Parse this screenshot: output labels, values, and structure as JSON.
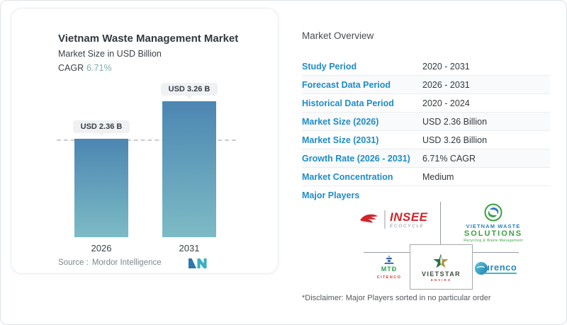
{
  "chart": {
    "title": "Vietnam Waste Management Market",
    "subtitle": "Market Size in USD Billion",
    "cagr_label": "CAGR",
    "cagr_value": "6.71%",
    "source_label": "Source :",
    "source_value": "Mordor Intelligence",
    "bars": [
      {
        "year": "2026",
        "label": "USD 2.36 B"
      },
      {
        "year": "2031",
        "label": "USD 3.26 B"
      }
    ]
  },
  "chart_data": {
    "type": "bar",
    "categories": [
      "2026",
      "2031"
    ],
    "values": [
      2.36,
      3.26
    ],
    "value_labels": [
      "USD 2.36 B",
      "USD 3.26 B"
    ],
    "title": "Vietnam Waste Management Market",
    "ylabel": "Market Size in USD Billion",
    "cagr": "6.71%",
    "dashed_reference_level": 2.36,
    "bar_gradient": [
      "#4c86b2",
      "#7cbbc5"
    ],
    "source": "Mordor Intelligence",
    "grid": false,
    "legend": false
  },
  "overview": {
    "title": "Market Overview",
    "rows": [
      {
        "label": "Study Period",
        "value": "2020 - 2031"
      },
      {
        "label": "Forecast Data Period",
        "value": "2026 - 2031"
      },
      {
        "label": "Historical Data Period",
        "value": "2020 - 2024"
      },
      {
        "label": "Market Size (2026)",
        "value": "USD 2.36 Billion"
      },
      {
        "label": "Market Size (2031)",
        "value": "USD 3.26 Billion"
      },
      {
        "label": "Growth Rate (2026 - 2031)",
        "value": "6.71% CAGR"
      },
      {
        "label": "Market Concentration",
        "value": "Medium"
      }
    ],
    "major_players_label": "Major Players",
    "players": {
      "insee": {
        "name": "INSEE",
        "sub": "ECOCYCLE"
      },
      "vws": {
        "line1": "VIETNAM WASTE",
        "line2": "SOLUTIONS",
        "line3": "Recycling & Waste Management"
      },
      "citenco": {
        "mark": "MTĐ",
        "name": "CITENCO"
      },
      "vietstar": {
        "name": "VIETSTAR",
        "sub": "ENVIRO"
      },
      "urenco": {
        "name": "urenco"
      }
    },
    "disclaimer": "*Disclaimer: Major Players sorted in no particular order"
  },
  "colors": {
    "label_blue": "#1f8cc7",
    "cagr_teal": "#7bacae",
    "bar_top": "#4c86b2",
    "bar_bottom": "#7cbbc5",
    "logo_blue": "#2d77af",
    "logo_teal": "#39aec3"
  }
}
